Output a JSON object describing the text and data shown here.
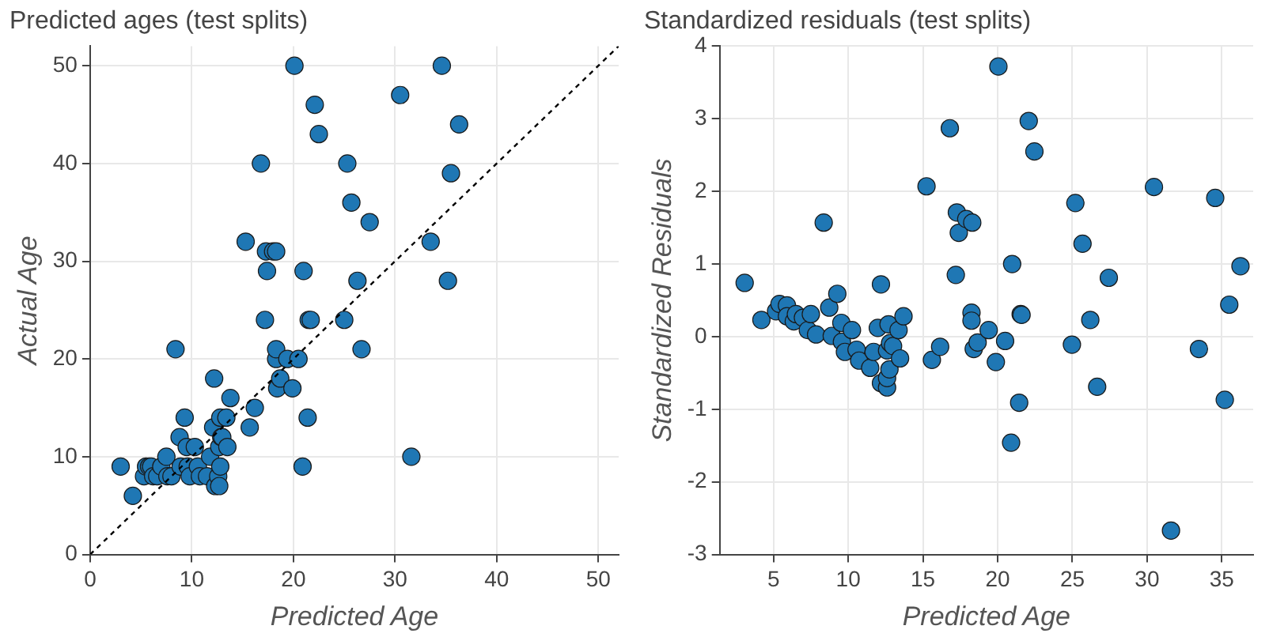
{
  "chart_data": [
    {
      "type": "scatter",
      "title": "Predicted ages (test splits)",
      "xlabel": "Predicted Age",
      "ylabel": "Actual Age",
      "xlim": [
        0,
        52
      ],
      "ylim": [
        0,
        52
      ],
      "xticks": [
        0,
        10,
        20,
        30,
        40,
        50
      ],
      "yticks": [
        0,
        10,
        20,
        30,
        40,
        50
      ],
      "grid": true,
      "marker": "circle",
      "series": [
        {
          "color": "#1f77b4",
          "x": [
            3.0,
            4.2,
            5.3,
            5.5,
            5.8,
            6.0,
            6.2,
            6.6,
            7.0,
            7.5,
            7.6,
            8.0,
            8.4,
            8.8,
            8.9,
            9.3,
            9.5,
            9.6,
            9.8,
            10.3,
            10.6,
            10.8,
            11.5,
            11.8,
            12.1,
            12.2,
            12.3,
            12.6,
            12.7,
            12.7,
            12.8,
            12.8,
            12.9,
            13.0,
            13.4,
            13.5,
            13.8,
            15.3,
            15.7,
            16.2,
            16.8,
            17.2,
            17.3,
            17.4,
            18.0,
            18.3,
            18.3,
            18.3,
            18.4,
            18.7,
            19.4,
            19.9,
            20.1,
            20.5,
            20.9,
            21.0,
            21.4,
            21.5,
            21.7,
            22.1,
            22.5,
            25.0,
            25.3,
            25.7,
            26.3,
            26.7,
            27.5,
            30.5,
            31.6,
            33.5,
            34.6,
            35.2,
            35.5,
            36.3
          ],
          "values": [
            9,
            6,
            8,
            9,
            9,
            9,
            8,
            8,
            9,
            10,
            8,
            8,
            21,
            12,
            9,
            14,
            11,
            9,
            8,
            11,
            9,
            8,
            8,
            10,
            13,
            18,
            7,
            8,
            7,
            11,
            9,
            14,
            12,
            12,
            14,
            11,
            16,
            32,
            13,
            15,
            40,
            24,
            31,
            29,
            31,
            31,
            20,
            21,
            17,
            18,
            20,
            17,
            50,
            20,
            9,
            29,
            14,
            24,
            24,
            46,
            43,
            24,
            40,
            36,
            28,
            21,
            34,
            47,
            10,
            32,
            50,
            28,
            39,
            44
          ]
        },
        {
          "type": "line",
          "color": "#000000",
          "line_style": "dashed",
          "marker": "none",
          "x": [
            0,
            52
          ],
          "values": [
            0,
            52
          ]
        }
      ]
    },
    {
      "type": "scatter",
      "title": "Standardized residuals (test splits)",
      "xlabel": "Predicted Age",
      "ylabel": "Standardized Residuals",
      "xlim": [
        1.4,
        37.1
      ],
      "ylim": [
        -3,
        4
      ],
      "xticks": [
        5,
        10,
        15,
        20,
        25,
        30,
        35
      ],
      "yticks": [
        -3,
        -2,
        -1,
        0,
        1,
        2,
        3,
        4
      ],
      "grid": true,
      "marker": "circle",
      "series": [
        {
          "color": "#1f77b4",
          "x": [
            3.07,
            4.19,
            5.17,
            5.4,
            5.9,
            5.9,
            6.36,
            6.5,
            6.97,
            7.3,
            7.5,
            7.85,
            8.36,
            8.73,
            8.9,
            9.27,
            9.54,
            9.58,
            9.78,
            10.25,
            10.56,
            10.73,
            11.47,
            11.7,
            11.98,
            12.19,
            12.19,
            12.6,
            12.6,
            12.6,
            12.7,
            12.76,
            12.8,
            13.0,
            13.37,
            13.47,
            13.7,
            15.24,
            15.6,
            16.15,
            16.8,
            17.2,
            17.27,
            17.4,
            17.9,
            18.25,
            18.25,
            18.3,
            18.4,
            18.66,
            19.4,
            19.88,
            20.05,
            20.5,
            20.9,
            20.97,
            21.44,
            21.54,
            21.6,
            22.08,
            22.46,
            24.97,
            25.2,
            25.68,
            26.2,
            26.66,
            27.44,
            30.46,
            31.6,
            33.47,
            34.56,
            35.2,
            35.5,
            36.25
          ],
          "values": [
            0.74,
            0.23,
            0.35,
            0.45,
            0.43,
            0.28,
            0.21,
            0.31,
            0.26,
            0.09,
            0.31,
            0.03,
            1.57,
            0.4,
            0.01,
            0.59,
            0.19,
            -0.07,
            -0.21,
            0.09,
            -0.18,
            -0.33,
            -0.43,
            -0.21,
            0.12,
            0.72,
            -0.64,
            -0.7,
            -0.57,
            -0.19,
            0.17,
            -0.45,
            -0.09,
            -0.13,
            0.09,
            -0.3,
            0.28,
            2.07,
            -0.32,
            -0.14,
            2.87,
            0.85,
            1.71,
            1.43,
            1.62,
            0.33,
            0.22,
            1.57,
            -0.17,
            -0.08,
            0.09,
            -0.35,
            3.72,
            -0.06,
            -1.46,
            1.0,
            -0.91,
            0.31,
            0.3,
            2.97,
            2.55,
            -0.11,
            1.84,
            1.28,
            0.23,
            -0.69,
            0.81,
            2.06,
            -2.67,
            -0.17,
            1.91,
            -0.87,
            0.44,
            0.97
          ]
        }
      ]
    }
  ]
}
